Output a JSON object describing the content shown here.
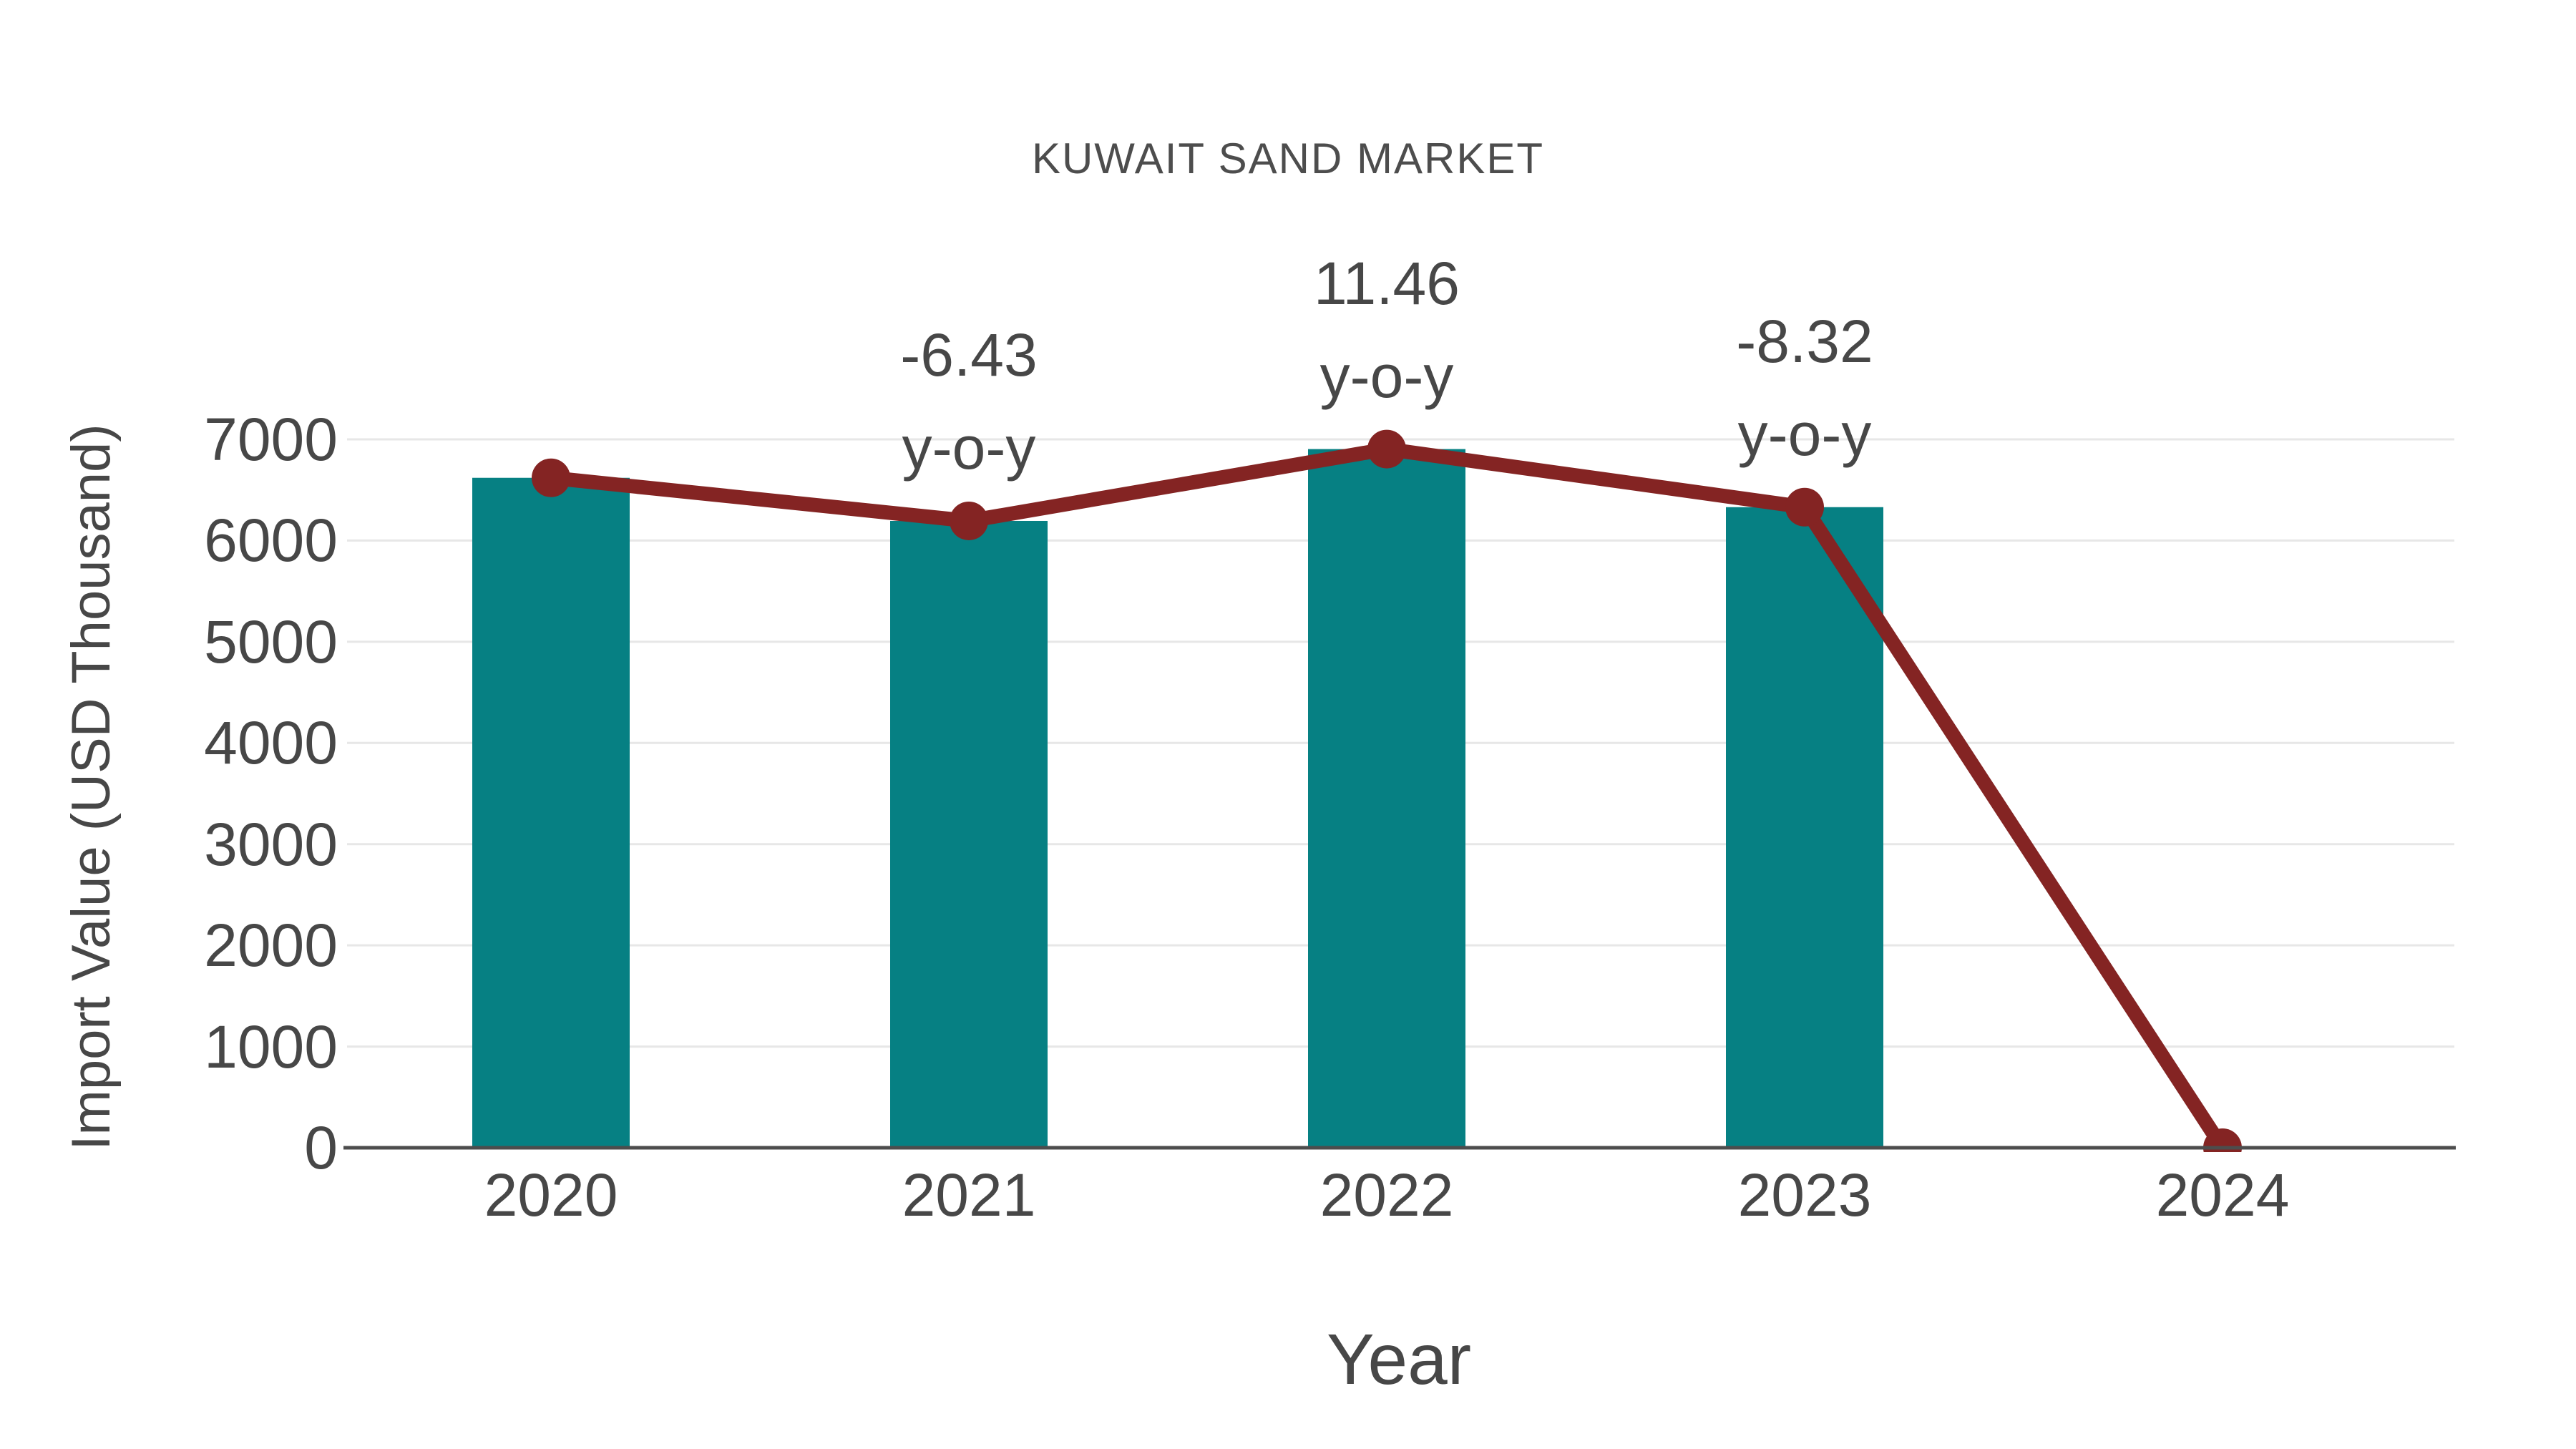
{
  "chart_data": {
    "type": "bar+line",
    "title": "KUWAIT SAND MARKET",
    "xlabel": "Year",
    "ylabel": "Import Value (USD Thousand)",
    "categories": [
      "2020",
      "2021",
      "2022",
      "2023",
      "2024"
    ],
    "series": [
      {
        "name": "Import Value bars",
        "type": "bar",
        "values": [
          6620,
          6194,
          6904,
          6330,
          null
        ]
      },
      {
        "name": "Import Value line",
        "type": "line",
        "values": [
          6620,
          6194,
          6904,
          6330,
          0
        ]
      }
    ],
    "annotations": [
      {
        "category": "2021",
        "line1": "-6.43",
        "line2": "y-o-y"
      },
      {
        "category": "2022",
        "line1": "11.46",
        "line2": "y-o-y"
      },
      {
        "category": "2023",
        "line1": "-8.32",
        "line2": "y-o-y"
      }
    ],
    "yticks": [
      0,
      1000,
      2000,
      3000,
      4000,
      5000,
      6000,
      7000
    ],
    "ytick_labels": [
      "0",
      "1000",
      "2000",
      "3000",
      "4000",
      "5000",
      "6000",
      "7000"
    ],
    "ylim": [
      0,
      7000
    ],
    "grid": true,
    "legend": "none",
    "colors": {
      "bar": "#068083",
      "line": "#842423",
      "marker": "#842423",
      "text": "#474747",
      "title": "#4d4d4d",
      "grid": "#e7e7e7",
      "axis": "#4d4d4d",
      "background": "#ffffff"
    }
  }
}
